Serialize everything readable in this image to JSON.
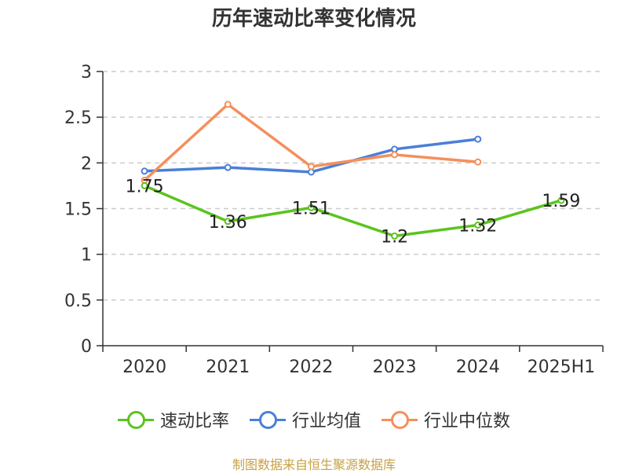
{
  "title": "历年速动比率变化情况",
  "source": "制图数据来自恒生聚源数据库",
  "chart_data": {
    "type": "line",
    "title": "历年速动比率变化情况",
    "categories": [
      "2020",
      "2021",
      "2022",
      "2023",
      "2024",
      "2025H1"
    ],
    "ylim": [
      0,
      3
    ],
    "yticks": [
      "0",
      "0.5",
      "1",
      "1.5",
      "2",
      "2.5",
      "3"
    ],
    "grid": true,
    "legend_position": "bottom",
    "series": [
      {
        "name": "速动比率",
        "color": "#5cc31f",
        "values": [
          1.75,
          1.36,
          1.51,
          1.2,
          1.32,
          1.59
        ],
        "labels": [
          "1.75",
          "1.36",
          "1.51",
          "1.2",
          "1.32",
          "1.59"
        ]
      },
      {
        "name": "行业均值",
        "color": "#4a7fd8",
        "values": [
          1.91,
          1.95,
          1.9,
          2.15,
          2.26,
          null
        ]
      },
      {
        "name": "行业中位数",
        "color": "#f58f5b",
        "values": [
          1.81,
          2.64,
          1.96,
          2.09,
          2.01,
          null
        ]
      }
    ]
  }
}
